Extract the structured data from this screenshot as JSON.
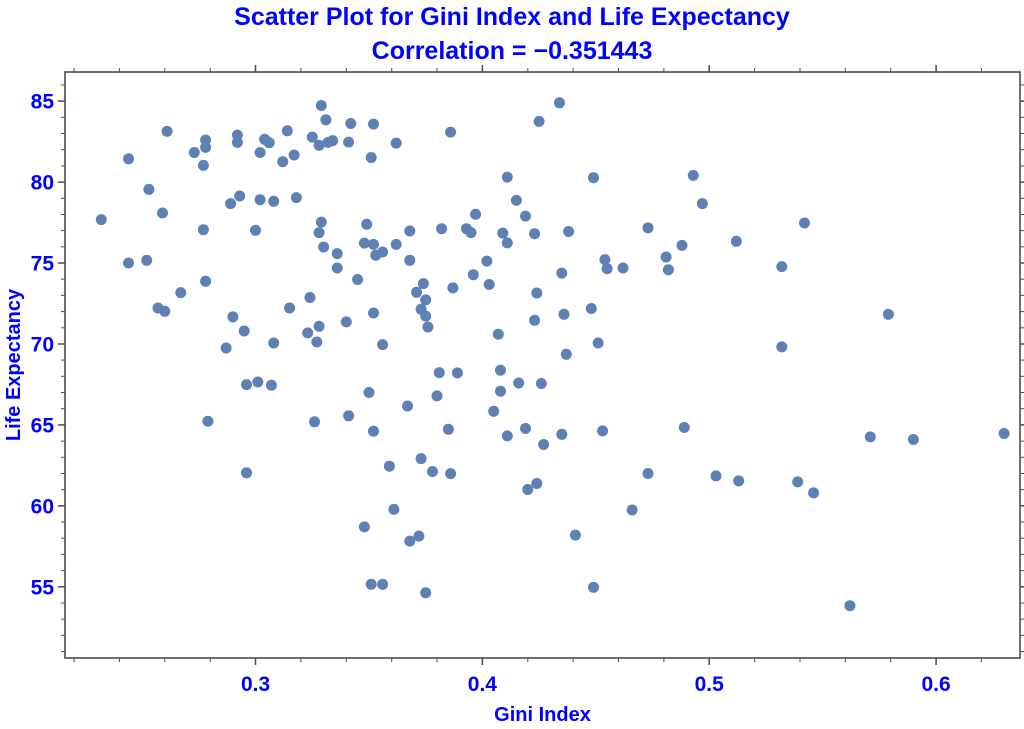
{
  "chart_data": {
    "type": "scatter",
    "title": "Scatter Plot for Gini Index and Life Expectancy",
    "subtitle": "Correlation = −0.351443",
    "xlabel": "Gini Index",
    "ylabel": "Life Expectancy",
    "xlim": [
      0.216,
      0.637
    ],
    "ylim": [
      50.6,
      86.8
    ],
    "x_major_ticks": [
      0.3,
      0.4,
      0.5,
      0.6
    ],
    "x_tick_labels": [
      "0.3",
      "0.4",
      "0.5",
      "0.6"
    ],
    "x_minor_step": 0.02,
    "y_major_ticks": [
      55,
      60,
      65,
      70,
      75,
      80,
      85
    ],
    "y_tick_labels": [
      "55",
      "60",
      "65",
      "70",
      "75",
      "80",
      "85"
    ],
    "y_minor_step": 1,
    "grid": false,
    "legend_position": "none",
    "colors": {
      "title_text": "#0000FF",
      "axis_text": "#0000FF",
      "marker": "#5E81B5",
      "frame": "#4D4D4D"
    },
    "points": [
      [
        0.329,
        84.73
      ],
      [
        0.331,
        83.85
      ],
      [
        0.342,
        83.62
      ],
      [
        0.352,
        83.58
      ],
      [
        0.261,
        83.13
      ],
      [
        0.314,
        83.17
      ],
      [
        0.325,
        82.78
      ],
      [
        0.292,
        82.9
      ],
      [
        0.304,
        82.64
      ],
      [
        0.306,
        82.43
      ],
      [
        0.328,
        82.27
      ],
      [
        0.332,
        82.45
      ],
      [
        0.334,
        82.56
      ],
      [
        0.341,
        82.47
      ],
      [
        0.278,
        82.6
      ],
      [
        0.292,
        82.45
      ],
      [
        0.273,
        81.83
      ],
      [
        0.302,
        81.83
      ],
      [
        0.278,
        82.14
      ],
      [
        0.244,
        81.44
      ],
      [
        0.312,
        81.26
      ],
      [
        0.317,
        81.67
      ],
      [
        0.351,
        81.52
      ],
      [
        0.277,
        81.03
      ],
      [
        0.253,
        79.55
      ],
      [
        0.293,
        79.14
      ],
      [
        0.289,
        78.67
      ],
      [
        0.302,
        78.91
      ],
      [
        0.308,
        78.81
      ],
      [
        0.318,
        79.04
      ],
      [
        0.259,
        78.09
      ],
      [
        0.232,
        77.68
      ],
      [
        0.277,
        77.06
      ],
      [
        0.3,
        77.02
      ],
      [
        0.329,
        77.53
      ],
      [
        0.328,
        76.88
      ],
      [
        0.349,
        77.39
      ],
      [
        0.33,
        75.99
      ],
      [
        0.348,
        76.23
      ],
      [
        0.352,
        76.15
      ],
      [
        0.336,
        75.58
      ],
      [
        0.353,
        75.48
      ],
      [
        0.356,
        75.68
      ],
      [
        0.244,
        75.0
      ],
      [
        0.252,
        75.17
      ],
      [
        0.336,
        74.69
      ],
      [
        0.434,
        84.9
      ],
      [
        0.425,
        83.75
      ],
      [
        0.386,
        83.09
      ],
      [
        0.362,
        82.41
      ],
      [
        0.411,
        80.31
      ],
      [
        0.449,
        80.27
      ],
      [
        0.493,
        80.41
      ],
      [
        0.497,
        78.67
      ],
      [
        0.415,
        78.87
      ],
      [
        0.397,
        78.01
      ],
      [
        0.419,
        77.9
      ],
      [
        0.368,
        76.98
      ],
      [
        0.382,
        77.12
      ],
      [
        0.393,
        77.12
      ],
      [
        0.395,
        76.88
      ],
      [
        0.409,
        76.85
      ],
      [
        0.423,
        76.81
      ],
      [
        0.438,
        76.95
      ],
      [
        0.473,
        77.17
      ],
      [
        0.411,
        76.24
      ],
      [
        0.362,
        76.15
      ],
      [
        0.368,
        75.17
      ],
      [
        0.402,
        75.12
      ],
      [
        0.481,
        75.37
      ],
      [
        0.488,
        76.09
      ],
      [
        0.454,
        75.21
      ],
      [
        0.455,
        74.65
      ],
      [
        0.462,
        74.69
      ],
      [
        0.482,
        74.59
      ],
      [
        0.542,
        77.47
      ],
      [
        0.512,
        76.34
      ],
      [
        0.532,
        74.78
      ],
      [
        0.345,
        73.98
      ],
      [
        0.278,
        73.87
      ],
      [
        0.267,
        73.17
      ],
      [
        0.257,
        72.22
      ],
      [
        0.26,
        72.02
      ],
      [
        0.324,
        72.87
      ],
      [
        0.315,
        72.22
      ],
      [
        0.29,
        71.67
      ],
      [
        0.352,
        71.91
      ],
      [
        0.34,
        71.36
      ],
      [
        0.295,
        70.8
      ],
      [
        0.323,
        70.68
      ],
      [
        0.328,
        71.09
      ],
      [
        0.327,
        70.12
      ],
      [
        0.308,
        70.06
      ],
      [
        0.356,
        69.96
      ],
      [
        0.287,
        69.75
      ],
      [
        0.296,
        67.49
      ],
      [
        0.301,
        67.65
      ],
      [
        0.307,
        67.45
      ],
      [
        0.35,
        67.0
      ],
      [
        0.279,
        65.23
      ],
      [
        0.326,
        65.19
      ],
      [
        0.341,
        65.56
      ],
      [
        0.352,
        64.61
      ],
      [
        0.396,
        74.28
      ],
      [
        0.435,
        74.38
      ],
      [
        0.374,
        73.73
      ],
      [
        0.387,
        73.46
      ],
      [
        0.371,
        73.19
      ],
      [
        0.403,
        73.67
      ],
      [
        0.375,
        72.72
      ],
      [
        0.424,
        73.15
      ],
      [
        0.373,
        72.14
      ],
      [
        0.375,
        71.72
      ],
      [
        0.376,
        71.05
      ],
      [
        0.423,
        71.46
      ],
      [
        0.436,
        71.83
      ],
      [
        0.448,
        72.19
      ],
      [
        0.407,
        70.6
      ],
      [
        0.451,
        70.06
      ],
      [
        0.437,
        69.36
      ],
      [
        0.408,
        68.38
      ],
      [
        0.381,
        68.23
      ],
      [
        0.389,
        68.21
      ],
      [
        0.416,
        67.59
      ],
      [
        0.426,
        67.56
      ],
      [
        0.408,
        67.08
      ],
      [
        0.38,
        66.79
      ],
      [
        0.367,
        66.17
      ],
      [
        0.405,
        65.84
      ],
      [
        0.385,
        64.73
      ],
      [
        0.419,
        64.78
      ],
      [
        0.411,
        64.32
      ],
      [
        0.435,
        64.42
      ],
      [
        0.453,
        64.63
      ],
      [
        0.489,
        64.84
      ],
      [
        0.427,
        63.79
      ],
      [
        0.373,
        62.92
      ],
      [
        0.579,
        71.83
      ],
      [
        0.532,
        69.82
      ],
      [
        0.571,
        64.26
      ],
      [
        0.59,
        64.1
      ],
      [
        0.63,
        64.47
      ],
      [
        0.296,
        62.04
      ],
      [
        0.348,
        58.7
      ],
      [
        0.351,
        55.15
      ],
      [
        0.356,
        55.15
      ],
      [
        0.359,
        62.45
      ],
      [
        0.378,
        62.12
      ],
      [
        0.386,
        61.99
      ],
      [
        0.42,
        61.01
      ],
      [
        0.424,
        61.38
      ],
      [
        0.473,
        62.0
      ],
      [
        0.361,
        59.78
      ],
      [
        0.466,
        59.74
      ],
      [
        0.372,
        58.13
      ],
      [
        0.368,
        57.82
      ],
      [
        0.441,
        58.19
      ],
      [
        0.375,
        54.63
      ],
      [
        0.449,
        54.96
      ],
      [
        0.503,
        61.85
      ],
      [
        0.513,
        61.54
      ],
      [
        0.539,
        61.48
      ],
      [
        0.546,
        60.8
      ],
      [
        0.562,
        53.83
      ]
    ]
  }
}
